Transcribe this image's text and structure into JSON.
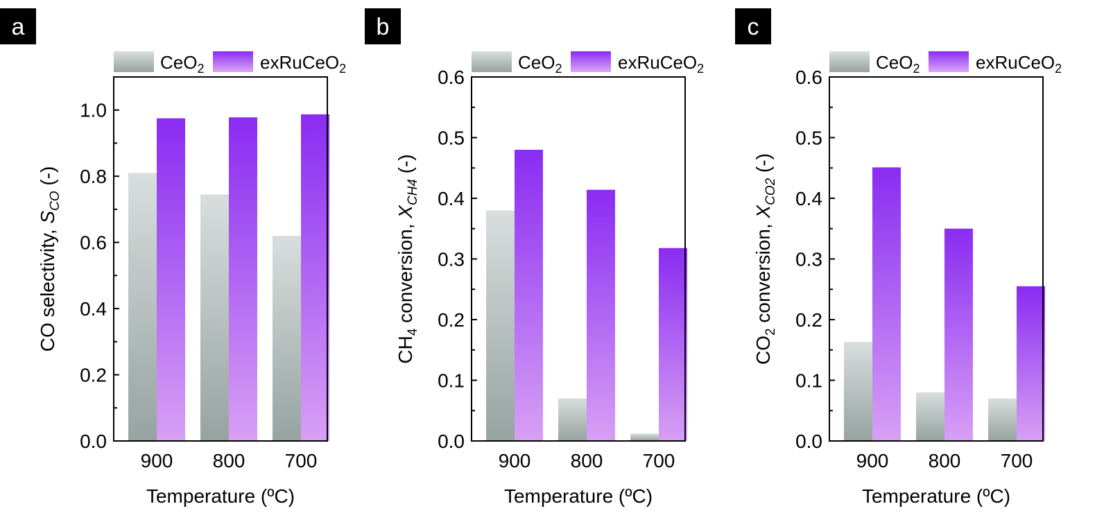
{
  "colors": {
    "ceo2_top": "#d8dedd",
    "ceo2_bottom": "#96a3a0",
    "exru_top": "#8a2cf2",
    "exru_bottom": "#d7a0f4",
    "exru_legend_top": "#8a2cf2",
    "exru_legend_bottom": "#dca7f6",
    "label_box": "#000000"
  },
  "legend": {
    "ceo2": {
      "main": "CeO",
      "sub": "2"
    },
    "exru": {
      "main": "exRuCeO",
      "sub": "2"
    }
  },
  "xlabel": "Temperature (ºC)",
  "panels": [
    {
      "letter": "a",
      "ylabel": {
        "main": "CO selectivity, ",
        "italic": "S",
        "sub": "CO",
        "tail": " (-)"
      }
    },
    {
      "letter": "b",
      "ylabel": {
        "prefix": "CH",
        "prefix_sub": "4",
        "main": " conversion, ",
        "italic": "X",
        "sub": "CH4",
        "tail": " (-)"
      }
    },
    {
      "letter": "c",
      "ylabel": {
        "prefix": "CO",
        "prefix_sub": "2",
        "main": " conversion, ",
        "italic": "X",
        "sub": "CO2",
        "tail": " (-)"
      }
    }
  ],
  "chart_data": [
    {
      "type": "bar",
      "categories": [
        "900",
        "800",
        "700"
      ],
      "series": [
        {
          "name": "CeO2",
          "values": [
            0.81,
            0.745,
            0.62
          ]
        },
        {
          "name": "exRuCeO2",
          "values": [
            0.975,
            0.978,
            0.987
          ]
        }
      ],
      "ylim": [
        0,
        1.1
      ],
      "yticks": [
        0.0,
        0.2,
        0.4,
        0.6,
        0.8,
        1.0
      ],
      "ytick_labels": [
        "0.0",
        "0.2",
        "0.4",
        "0.6",
        "0.8",
        "1.0"
      ],
      "xlabel": "Temperature (ºC)",
      "ylabel": "CO selectivity, SCO (-)",
      "grid": false,
      "legend": "top"
    },
    {
      "type": "bar",
      "categories": [
        "900",
        "800",
        "700"
      ],
      "series": [
        {
          "name": "CeO2",
          "values": [
            0.38,
            0.07,
            0.012
          ]
        },
        {
          "name": "exRuCeO2",
          "values": [
            0.48,
            0.414,
            0.318
          ]
        }
      ],
      "ylim": [
        0,
        0.6
      ],
      "yticks": [
        0.0,
        0.1,
        0.2,
        0.3,
        0.4,
        0.5,
        0.6
      ],
      "ytick_labels": [
        "0.0",
        "0.1",
        "0.2",
        "0.3",
        "0.4",
        "0.5",
        "0.6"
      ],
      "xlabel": "Temperature (ºC)",
      "ylabel": "CH4 conversion, XCH4 (-)",
      "grid": false,
      "legend": "top"
    },
    {
      "type": "bar",
      "categories": [
        "900",
        "800",
        "700"
      ],
      "series": [
        {
          "name": "CeO2",
          "values": [
            0.163,
            0.08,
            0.07
          ]
        },
        {
          "name": "exRuCeO2",
          "values": [
            0.451,
            0.35,
            0.255
          ]
        }
      ],
      "ylim": [
        0,
        0.6
      ],
      "yticks": [
        0.0,
        0.1,
        0.2,
        0.3,
        0.4,
        0.5,
        0.6
      ],
      "ytick_labels": [
        "0.0",
        "0.1",
        "0.2",
        "0.3",
        "0.4",
        "0.5",
        "0.6"
      ],
      "xlabel": "Temperature (ºC)",
      "ylabel": "CO2 conversion, XCO2 (-)",
      "grid": false,
      "legend": "top"
    }
  ]
}
